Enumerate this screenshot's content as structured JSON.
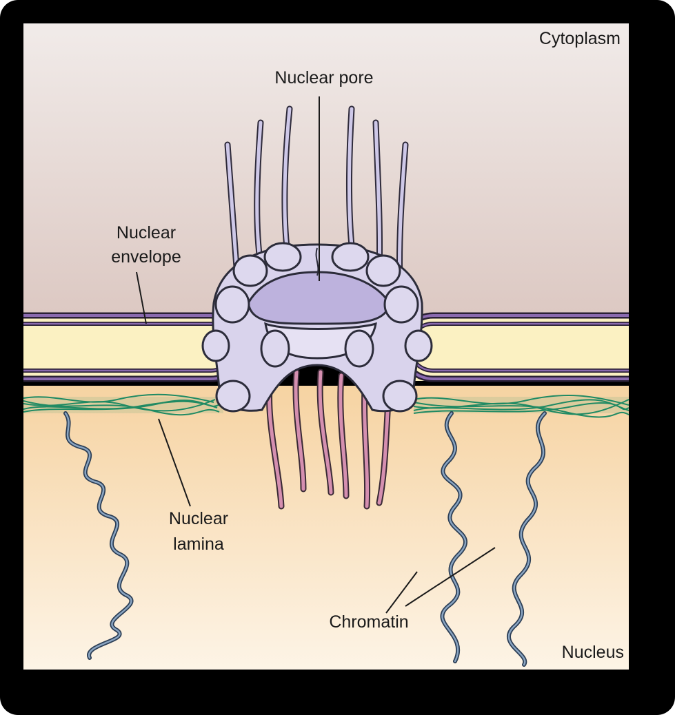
{
  "labels": {
    "cytoplasm": "Cytoplasm",
    "nuclear_pore": "Nuclear pore",
    "nuclear_envelope_line1": "Nuclear",
    "nuclear_envelope_line2": "envelope",
    "nuclear_lamina_line1": "Nuclear",
    "nuclear_lamina_line2": "lamina",
    "chromatin": "Chromatin",
    "nucleus": "Nucleus"
  },
  "colors": {
    "frame": "#000000",
    "cytoplasm_top": "#efe6e4",
    "cytoplasm_bottom": "#ddc9c4",
    "nucleus_top": "#f7d7a9",
    "nucleus_bottom": "#fdf3e3",
    "envelope_fill": "#fbf1c2",
    "envelope_membrane": "#6d4f8f",
    "pore_fill": "#ddd8ee",
    "pore_inner": "#bdb2dd",
    "pore_stroke": "#2c2c3a",
    "cytoplasmic_filament": "#c9c3e3",
    "nuclear_filament": "#d58fb0",
    "lamina": "#1f8a63",
    "chromatin": "#4a6683"
  }
}
